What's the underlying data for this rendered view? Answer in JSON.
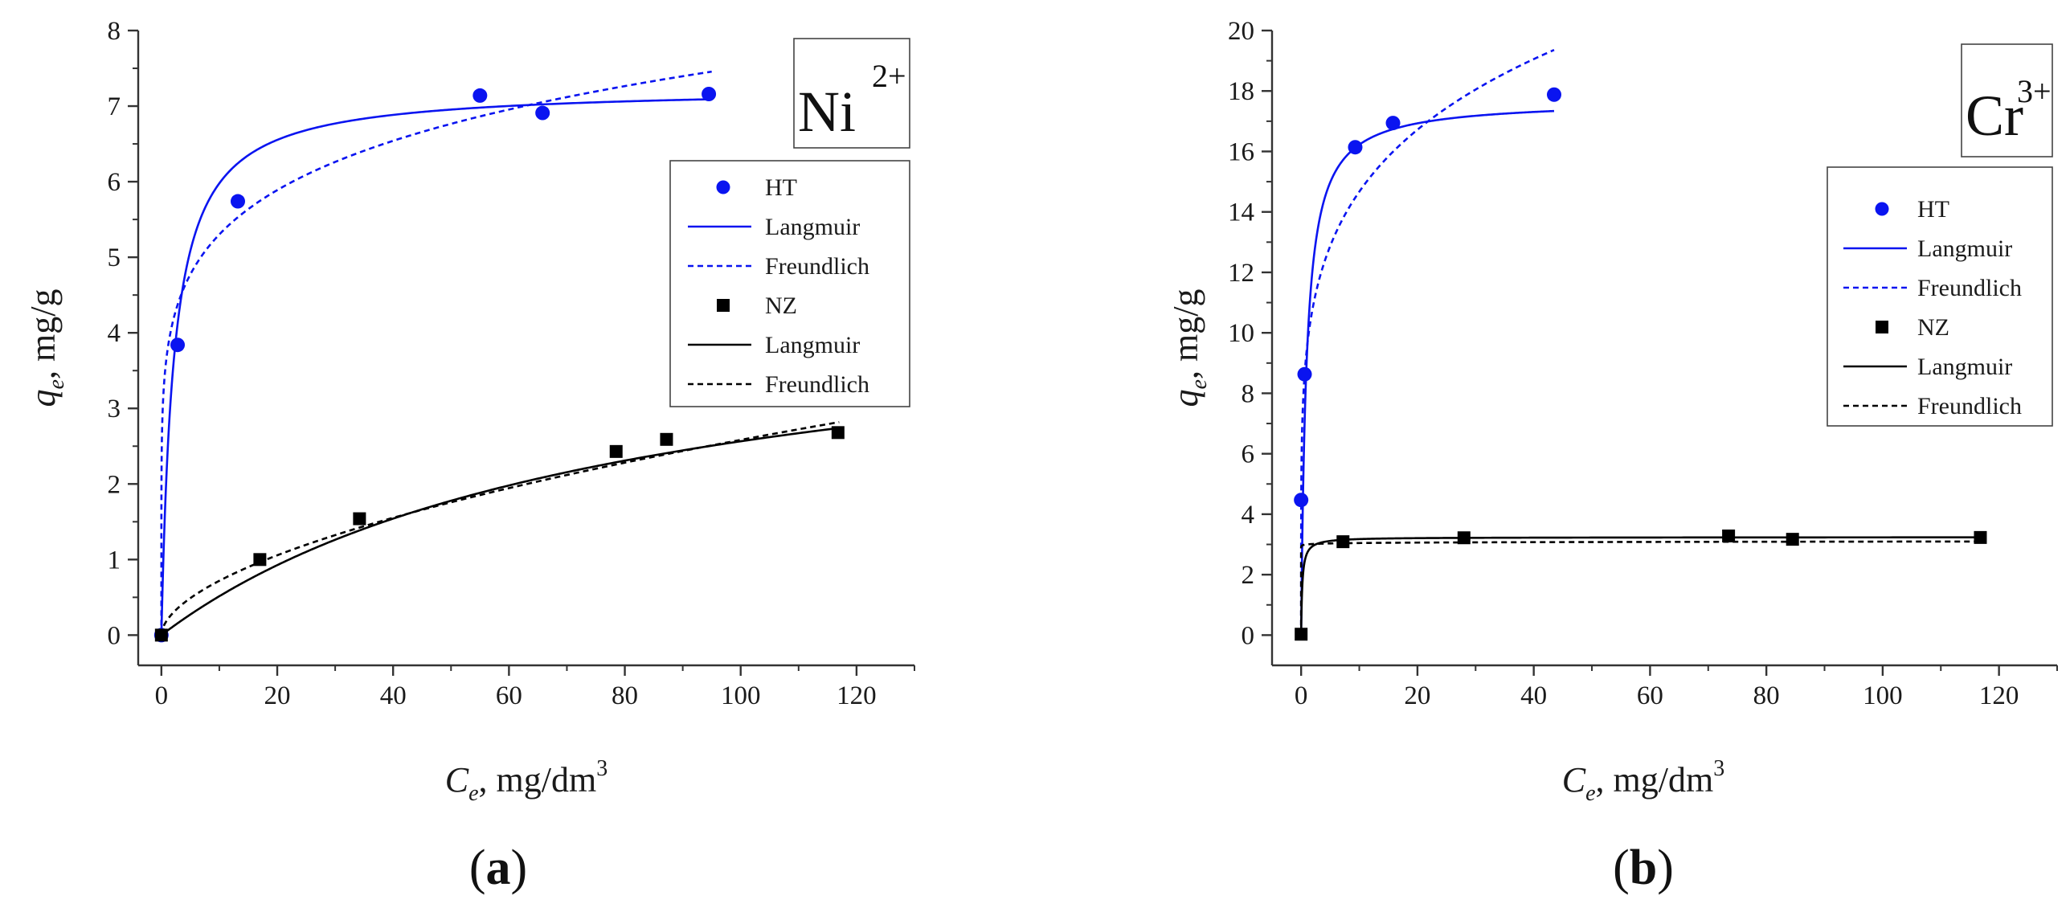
{
  "chart_data": [
    {
      "type": "scatter",
      "panel_label": "a",
      "ion": {
        "base": "Ni",
        "charge": "2+"
      },
      "xlabel": {
        "var": "C",
        "sub": "e",
        "unit": ", mg/dm",
        "power": "3"
      },
      "ylabel": {
        "var": "q",
        "sub": "e",
        "unit": ", mg/g"
      },
      "xlim": [
        -4,
        130
      ],
      "ylim": [
        -0.4,
        8
      ],
      "x_major_ticks": [
        0,
        20,
        40,
        60,
        80,
        100,
        120
      ],
      "x_tick_labels": [
        "0",
        "20",
        "40",
        "60",
        "80",
        "100",
        "120"
      ],
      "y_major_ticks": [
        0,
        1,
        2,
        3,
        4,
        5,
        6,
        7,
        8
      ],
      "y_tick_labels": [
        "0",
        "1",
        "2",
        "3",
        "4",
        "5",
        "6",
        "7",
        "8"
      ],
      "legend_position": "upper-right",
      "series": [
        {
          "name": "HT",
          "kind": "points",
          "marker": "circle",
          "color": "#0a14f0",
          "x": [
            0,
            2.8,
            13.2,
            55.0,
            65.8,
            94.5
          ],
          "y": [
            0,
            3.84,
            5.74,
            7.14,
            6.91,
            7.16
          ]
        },
        {
          "name": "Langmuir",
          "kind": "langmuir",
          "color": "#0a14f0",
          "dash": "solid",
          "params": {
            "qmax": 7.25,
            "K": 0.47
          },
          "x_range": [
            0,
            95
          ]
        },
        {
          "name": "Freundlich",
          "kind": "freundlich",
          "color": "#0a14f0",
          "dash": "dashed",
          "params": {
            "K": 3.74,
            "n": 6.6
          },
          "x_range": [
            0,
            95
          ]
        },
        {
          "name": "NZ",
          "kind": "points",
          "marker": "square",
          "color": "#000000",
          "x": [
            0,
            17,
            34.2,
            78.5,
            87.2,
            116.8
          ],
          "y": [
            0,
            1.0,
            1.54,
            2.43,
            2.59,
            2.68
          ]
        },
        {
          "name": "Langmuir",
          "kind": "langmuir",
          "color": "#000000",
          "dash": "solid",
          "params": {
            "qmax": 4.6,
            "K": 0.0126
          },
          "x_range": [
            0,
            117
          ]
        },
        {
          "name": "Freundlich",
          "kind": "freundlich",
          "color": "#000000",
          "dash": "dashed",
          "params": {
            "K": 0.2,
            "n": 1.8
          },
          "x_range": [
            0,
            117
          ]
        }
      ]
    },
    {
      "type": "scatter",
      "panel_label": "b",
      "ion": {
        "base": "Cr",
        "charge": "3+"
      },
      "xlabel": {
        "var": "C",
        "sub": "e",
        "unit": ", mg/dm",
        "power": "3"
      },
      "ylabel": {
        "var": "q",
        "sub": "e",
        "unit": ", mg/g"
      },
      "xlim": [
        -5,
        130
      ],
      "ylim": [
        -1,
        20
      ],
      "x_major_ticks": [
        0,
        20,
        40,
        60,
        80,
        100,
        120
      ],
      "x_tick_labels": [
        "0",
        "20",
        "40",
        "60",
        "80",
        "100",
        "120"
      ],
      "y_major_ticks": [
        0,
        2,
        4,
        6,
        8,
        10,
        12,
        14,
        16,
        18,
        20
      ],
      "y_tick_labels": [
        "0",
        "2",
        "4",
        "6",
        "8",
        "10",
        "12",
        "14",
        "16",
        "18",
        "20"
      ],
      "legend_position": "right",
      "series": [
        {
          "name": "HT",
          "kind": "points",
          "marker": "circle",
          "color": "#0a14f0",
          "x": [
            0,
            0.6,
            9.3,
            15.8,
            43.5
          ],
          "y": [
            4.47,
            8.63,
            16.14,
            16.94,
            17.88
          ]
        },
        {
          "name": "Langmuir",
          "kind": "langmuir",
          "color": "#0a14f0",
          "dash": "solid",
          "params": {
            "qmax": 17.7,
            "K": 1.1
          },
          "x_range": [
            0,
            43.5
          ]
        },
        {
          "name": "Freundlich",
          "kind": "freundlich",
          "color": "#0a14f0",
          "dash": "dashed",
          "params": {
            "K": 9.5,
            "n": 5.3
          },
          "x_range": [
            0,
            43.5
          ]
        },
        {
          "name": "NZ",
          "kind": "points",
          "marker": "square",
          "color": "#000000",
          "x": [
            0,
            7.2,
            28,
            73.5,
            84.5,
            116.8
          ],
          "y": [
            0.03,
            3.09,
            3.22,
            3.28,
            3.17,
            3.23
          ]
        },
        {
          "name": "Langmuir",
          "kind": "langmuir",
          "color": "#000000",
          "dash": "solid",
          "params": {
            "qmax": 3.24,
            "K": 5.0
          },
          "x_range": [
            0,
            117
          ]
        },
        {
          "name": "Freundlich",
          "kind": "freundlich",
          "color": "#000000",
          "dash": "dashed",
          "params": {
            "K": 3.0,
            "n": 150
          },
          "x_range": [
            0,
            117
          ]
        }
      ]
    }
  ]
}
